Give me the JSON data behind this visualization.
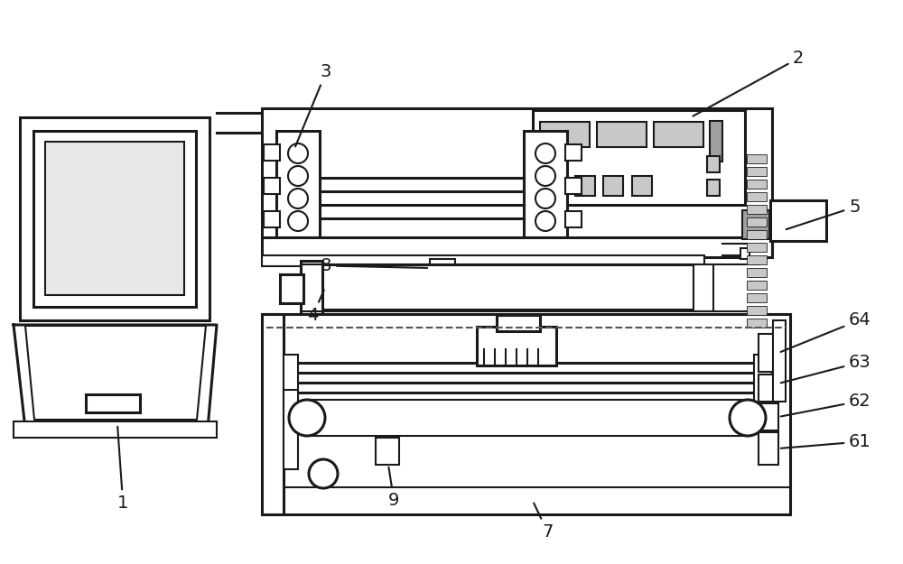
{
  "bg": "#ffffff",
  "lc": "#1a1a1a",
  "lw": 1.5,
  "lw_thick": 2.2,
  "gray1": "#c8c8c8",
  "gray2": "#a0a0a0",
  "gray3": "#e8e8e8"
}
